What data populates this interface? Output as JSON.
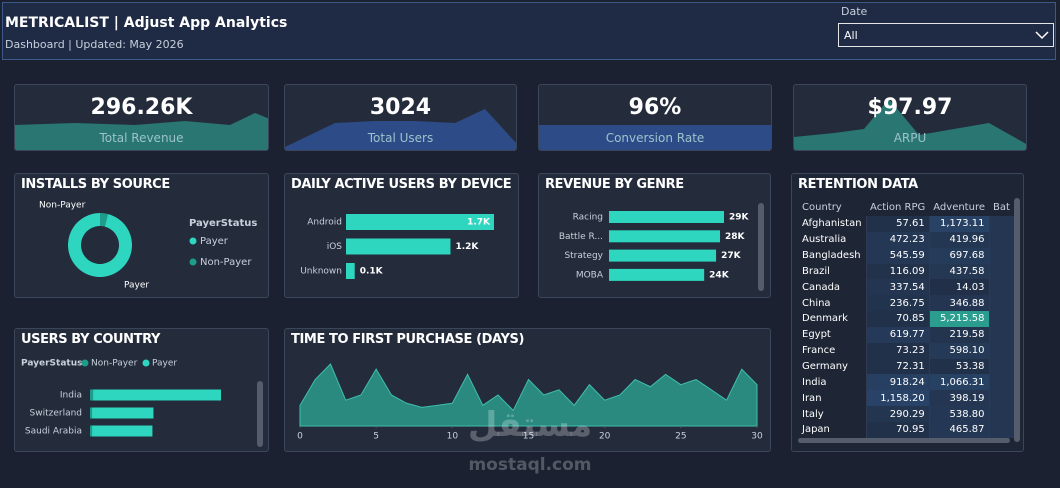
{
  "header": {
    "title": "METRICALIST | Adjust App Analytics",
    "subtitle": "Dashboard | Updated: May 2026"
  },
  "filter": {
    "label": "Date",
    "value": "All"
  },
  "kpis": [
    {
      "value": "296.26K",
      "label": "Total Revenue"
    },
    {
      "value": "3024",
      "label": "Total Users"
    },
    {
      "value": "96%",
      "label": "Conversion Rate"
    },
    {
      "value": "$97.97",
      "label": "ARPU"
    }
  ],
  "chart_data": [
    {
      "type": "donut",
      "title": "INSTALLS BY SOURCE",
      "legend_title": "PayerStatus",
      "categories": [
        "Payer",
        "Non-Payer"
      ],
      "values": [
        96,
        4
      ],
      "colors": [
        "#2ed6c0",
        "#1e9e8a"
      ]
    },
    {
      "type": "hbar",
      "title": "DAILY ACTIVE USERS BY DEVICE",
      "categories": [
        "Android",
        "iOS",
        "Unknown"
      ],
      "values": [
        1700,
        1200,
        100
      ],
      "value_labels": [
        "1.7K",
        "1.2K",
        "0.1K"
      ],
      "color": "#2ed6c0"
    },
    {
      "type": "hbar",
      "title": "REVENUE BY GENRE",
      "categories": [
        "Racing",
        "Battle R...",
        "Strategy",
        "MOBA"
      ],
      "values": [
        29000,
        28000,
        27000,
        24000
      ],
      "value_labels": [
        "29K",
        "28K",
        "27K",
        "24K"
      ],
      "color": "#2ed6c0"
    },
    {
      "type": "stacked_hbar",
      "title": "USERS BY COUNTRY",
      "legend_title": "PayerStatus",
      "categories": [
        "India",
        "Switzerland",
        "Saudi Arabia"
      ],
      "series": [
        {
          "name": "Non-Payer",
          "color": "#1e9e8a",
          "values": [
            3,
            2,
            2
          ]
        },
        {
          "name": "Payer",
          "color": "#2ed6c0",
          "values": [
            125,
            60,
            59
          ]
        }
      ]
    },
    {
      "type": "area",
      "title": "TIME TO FIRST PURCHASE (DAYS)",
      "x": [
        0,
        1,
        2,
        3,
        4,
        5,
        6,
        7,
        8,
        9,
        10,
        11,
        12,
        13,
        14,
        15,
        16,
        17,
        18,
        19,
        20,
        21,
        22,
        23,
        24,
        25,
        26,
        27,
        28,
        29,
        30
      ],
      "values": [
        20,
        45,
        60,
        25,
        30,
        55,
        30,
        22,
        18,
        20,
        22,
        50,
        20,
        30,
        15,
        45,
        30,
        35,
        20,
        40,
        25,
        30,
        45,
        38,
        50,
        40,
        45,
        35,
        25,
        55,
        40
      ],
      "xlim": [
        0,
        30
      ],
      "xticks": [
        0,
        5,
        10,
        15,
        20,
        25,
        30
      ],
      "color": "#2a8a80"
    }
  ],
  "table": {
    "title": "RETENTION DATA",
    "columns": [
      "Country",
      "Action RPG",
      "Adventure",
      "Bat"
    ],
    "rows": [
      [
        "Afghanistan",
        "57.61",
        "1,173.11"
      ],
      [
        "Australia",
        "472.23",
        "419.96"
      ],
      [
        "Bangladesh",
        "545.59",
        "697.68"
      ],
      [
        "Brazil",
        "116.09",
        "437.58"
      ],
      [
        "Canada",
        "337.54",
        "14.03"
      ],
      [
        "China",
        "236.75",
        "346.88"
      ],
      [
        "Denmark",
        "70.85",
        "5,215.58"
      ],
      [
        "Egypt",
        "619.77",
        "219.58"
      ],
      [
        "France",
        "73.23",
        "598.10"
      ],
      [
        "Germany",
        "72.31",
        "53.38"
      ],
      [
        "India",
        "918.24",
        "1,066.31"
      ],
      [
        "Iran",
        "1,158.20",
        "398.19"
      ],
      [
        "Italy",
        "290.29",
        "538.80"
      ],
      [
        "Japan",
        "70.95",
        "465.87"
      ]
    ]
  },
  "watermark": {
    "arabic": "مستقل",
    "latin": "mostaql.com"
  }
}
